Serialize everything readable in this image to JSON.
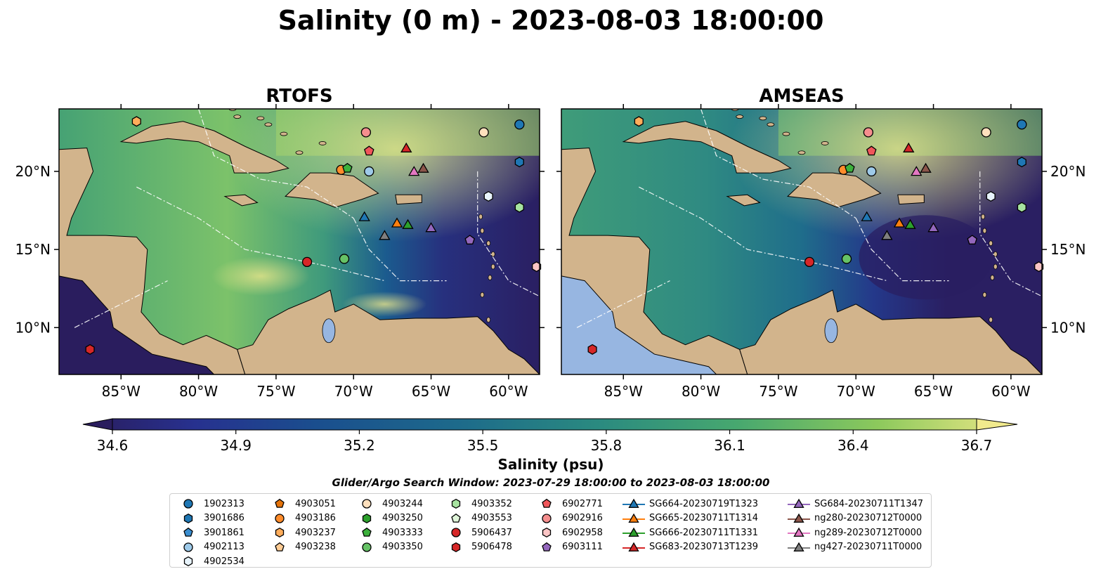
{
  "title": "Salinity (0 m) - 2023-08-03 18:00:00",
  "panels": [
    {
      "name": "RTOFS",
      "model": "rtofs"
    },
    {
      "name": "AMSEAS",
      "model": "amseas"
    }
  ],
  "axes": {
    "x_ticks": [
      "85°W",
      "80°W",
      "75°W",
      "70°W",
      "65°W",
      "60°W"
    ],
    "x_tick_values": [
      -85,
      -80,
      -75,
      -70,
      -65,
      -60
    ],
    "y_ticks": [
      "20°N",
      "15°N",
      "10°N"
    ],
    "y_tick_values": [
      20,
      15,
      10
    ],
    "lon_range": [
      -89,
      -58
    ],
    "lat_range": [
      7,
      24
    ]
  },
  "colorbar": {
    "label": "Salinity (psu)",
    "ticks": [
      "34.6",
      "34.9",
      "35.2",
      "35.5",
      "35.8",
      "36.1",
      "36.4",
      "36.7"
    ],
    "min": 34.6,
    "max": 36.7,
    "colormap": "haline",
    "extend": "both"
  },
  "search_window": "Glider/Argo Search Window: 2023-07-29 18:00:00 to 2023-08-03 18:00:00",
  "colors": {
    "land": "#d2b48c",
    "lake": "#97b6e1"
  },
  "legend_columns": [
    [
      {
        "label": "1902313",
        "marker": "circle",
        "color": "#1f77b4"
      },
      {
        "label": "3901686",
        "marker": "hexagon",
        "color": "#1f77b4"
      },
      {
        "label": "3901861",
        "marker": "pentagon",
        "color": "#3a8ed0"
      },
      {
        "label": "4902113",
        "marker": "circle",
        "color": "#9ecae9"
      },
      {
        "label": "4902534",
        "marker": "hexagon",
        "color": "#e8f4fc"
      }
    ],
    [
      {
        "label": "4903051",
        "marker": "pentagon",
        "color": "#e5730a"
      },
      {
        "label": "4903186",
        "marker": "circle",
        "color": "#ff8c2b"
      },
      {
        "label": "4903237",
        "marker": "hexagon",
        "color": "#ffad5b"
      },
      {
        "label": "4903238",
        "marker": "pentagon",
        "color": "#ffcc94"
      }
    ],
    [
      {
        "label": "4903244",
        "marker": "circle",
        "color": "#ffe0bd"
      },
      {
        "label": "4903250",
        "marker": "hexagon",
        "color": "#2ca02c"
      },
      {
        "label": "4903333",
        "marker": "pentagon",
        "color": "#3cb13c"
      },
      {
        "label": "4903350",
        "marker": "circle",
        "color": "#66c266"
      }
    ],
    [
      {
        "label": "4903352",
        "marker": "hexagon",
        "color": "#a7e3a0"
      },
      {
        "label": "4903553",
        "marker": "pentagon",
        "color": "#dff5d9"
      },
      {
        "label": "5906437",
        "marker": "circle",
        "color": "#d62728"
      },
      {
        "label": "5906478",
        "marker": "hexagon",
        "color": "#d62728"
      }
    ],
    [
      {
        "label": "6902771",
        "marker": "pentagon",
        "color": "#f0565a"
      },
      {
        "label": "6902916",
        "marker": "circle",
        "color": "#f58e8e"
      },
      {
        "label": "6902958",
        "marker": "hexagon",
        "color": "#fbc5c5"
      },
      {
        "label": "6903111",
        "marker": "pentagon",
        "color": "#9467bd"
      }
    ],
    [
      {
        "label": "SG664-20230719T1323",
        "marker": "triangle",
        "color": "#1f77b4"
      },
      {
        "label": "SG665-20230711T1314",
        "marker": "triangle",
        "color": "#ff7f0e"
      },
      {
        "label": "SG666-20230711T1331",
        "marker": "triangle",
        "color": "#2ca02c"
      },
      {
        "label": "SG683-20230713T1239",
        "marker": "triangle",
        "color": "#d62728"
      }
    ],
    [
      {
        "label": "SG684-20230711T1347",
        "marker": "triangle",
        "color": "#9467bd"
      },
      {
        "label": "ng280-20230712T0000",
        "marker": "triangle",
        "color": "#8c564b"
      },
      {
        "label": "ng289-20230712T0000",
        "marker": "triangle",
        "color": "#e377c2"
      },
      {
        "label": "ng427-20230711T0000",
        "marker": "triangle",
        "color": "#7f7f7f"
      }
    ]
  ],
  "platforms": [
    {
      "id": "1902313",
      "lon": -59.3,
      "lat": 23.0
    },
    {
      "id": "3901686",
      "lon": -59.3,
      "lat": 20.6
    },
    {
      "id": "4902534",
      "lon": -61.3,
      "lat": 18.4
    },
    {
      "id": "4903352",
      "lon": -59.3,
      "lat": 17.7
    },
    {
      "id": "4903244",
      "lon": -61.6,
      "lat": 22.5
    },
    {
      "id": "6902916",
      "lon": -69.2,
      "lat": 22.5
    },
    {
      "id": "6902771",
      "lon": -69.0,
      "lat": 21.3
    },
    {
      "id": "4902113",
      "lon": -69.0,
      "lat": 20.0
    },
    {
      "id": "4903186",
      "lon": -70.8,
      "lat": 20.1
    },
    {
      "id": "4903333",
      "lon": -70.4,
      "lat": 20.2
    },
    {
      "id": "SG683-20230713T1239",
      "lon": -66.6,
      "lat": 21.5
    },
    {
      "id": "ng289-20230712T0000",
      "lon": -66.1,
      "lat": 20.0
    },
    {
      "id": "ng280-20230712T0000",
      "lon": -65.5,
      "lat": 20.2
    },
    {
      "id": "SG664-20230719T1323",
      "lon": -69.3,
      "lat": 17.1
    },
    {
      "id": "SG665-20230711T1314",
      "lon": -67.2,
      "lat": 16.7
    },
    {
      "id": "SG666-20230711T1331",
      "lon": -66.5,
      "lat": 16.6
    },
    {
      "id": "SG684-20230711T1347",
      "lon": -65.0,
      "lat": 16.4
    },
    {
      "id": "ng427-20230711T0000",
      "lon": -68.0,
      "lat": 15.9
    },
    {
      "id": "6903111",
      "lon": -62.5,
      "lat": 15.6
    },
    {
      "id": "5906437",
      "lon": -73.0,
      "lat": 14.2
    },
    {
      "id": "4903350",
      "lon": -70.6,
      "lat": 14.4
    },
    {
      "id": "6902958",
      "lon": -58.2,
      "lat": 13.9
    },
    {
      "id": "5906478",
      "lon": -87.0,
      "lat": 8.6
    },
    {
      "id": "4903237",
      "lon": -84.0,
      "lat": 23.2
    }
  ]
}
